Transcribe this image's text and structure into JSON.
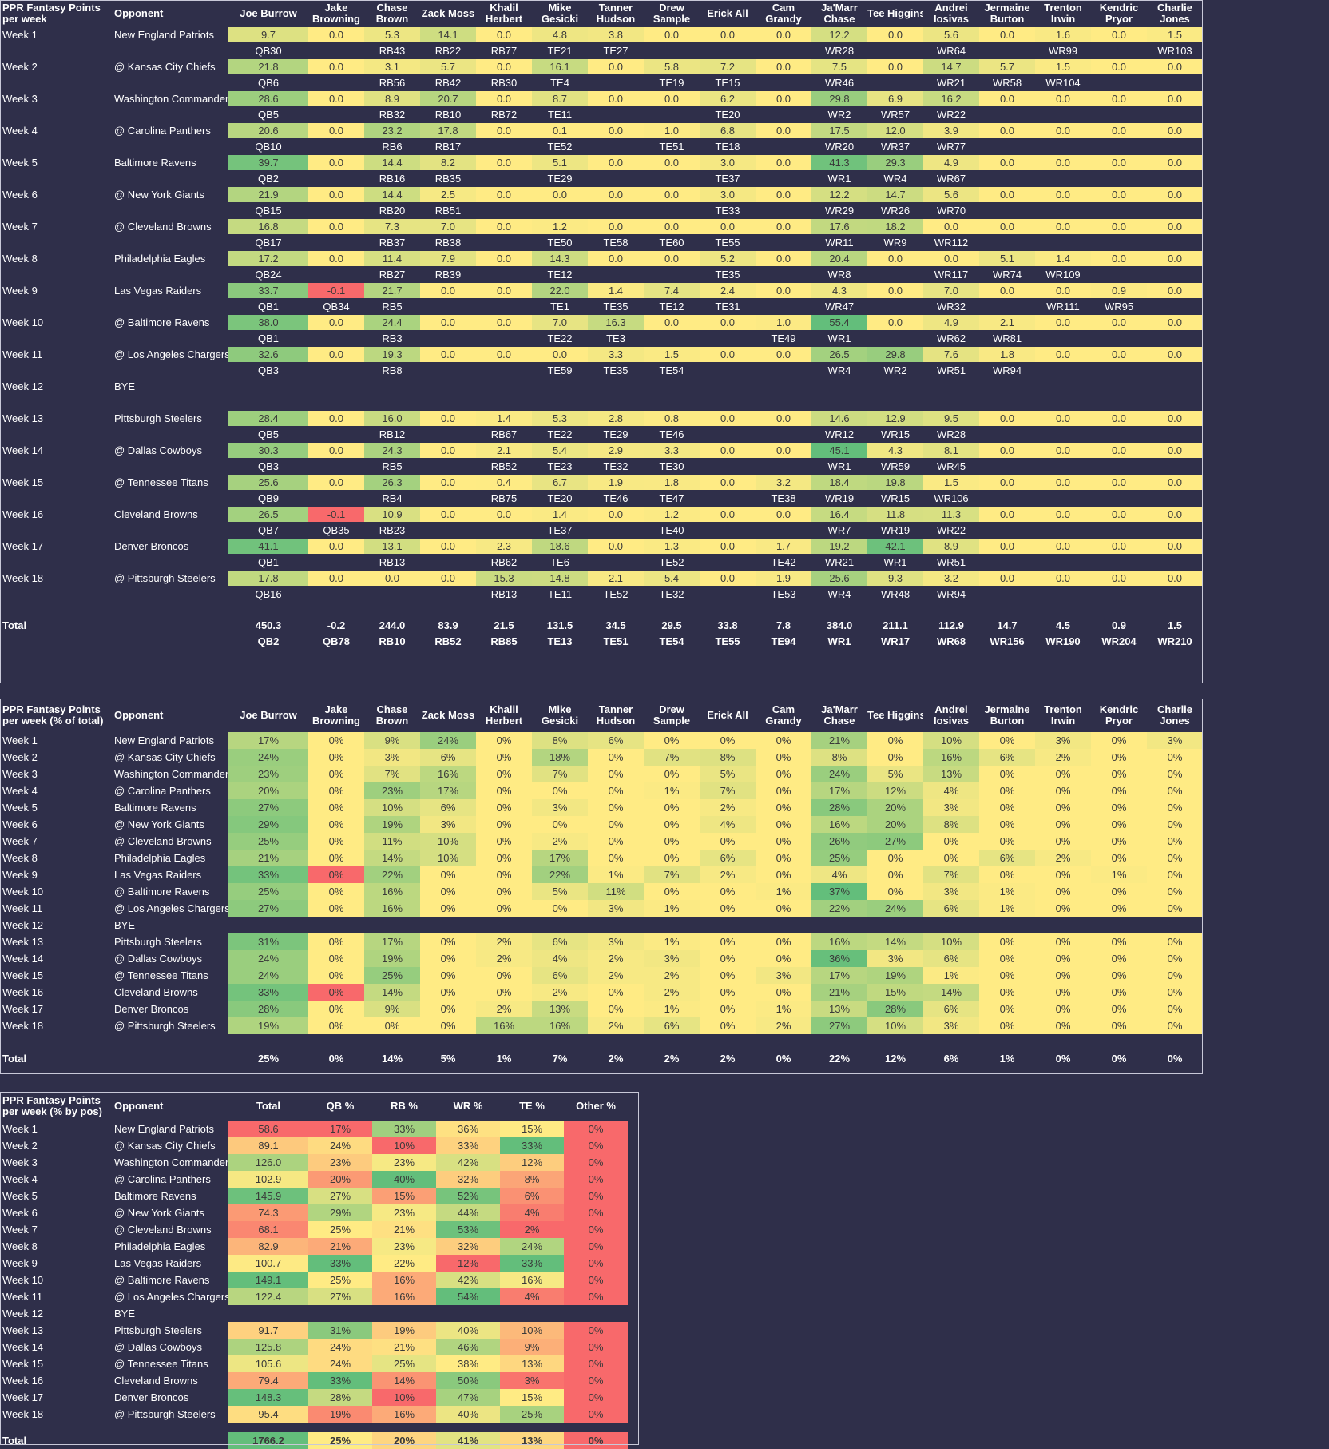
{
  "players": [
    "Joe Burrow",
    "Jake Browning",
    "Chase Brown",
    "Zack Moss",
    "Khalil Herbert",
    "Mike Gesicki",
    "Tanner Hudson",
    "Drew Sample",
    "Erick All",
    "Cam Grandy",
    "Ja'Marr Chase",
    "Tee Higgins",
    "Andrei Iosivas",
    "Jermaine Burton",
    "Trenton Irwin",
    "Kendric Pryor",
    "Charlie Jones"
  ],
  "players_display": [
    "Joe Burrow",
    "Jake\nBrowning",
    "Chase\nBrown",
    "Zack Moss",
    "Khalil\nHerbert",
    "Mike\nGesicki",
    "Tanner\nHudson",
    "Drew\nSample",
    "Erick All",
    "Cam\nGrandy",
    "Ja'Marr\nChase",
    "Tee Higgins",
    "Andrei\nIosivas",
    "Jermaine\nBurton",
    "Trenton\nIrwin",
    "Kendric\nPryor",
    "Charlie\nJones"
  ],
  "colors": {
    "background": "#2f2f4a",
    "low": "#f8696b",
    "mid": "#ffeb84",
    "high": "#63be7b",
    "text_on_cell": "#3a3a3a"
  },
  "weeks": [
    {
      "week": "Week 1",
      "opp": "New England Patriots"
    },
    {
      "week": "Week 2",
      "opp": "@ Kansas City Chiefs"
    },
    {
      "week": "Week 3",
      "opp": "Washington Commanders"
    },
    {
      "week": "Week 4",
      "opp": "@ Carolina Panthers"
    },
    {
      "week": "Week 5",
      "opp": "Baltimore Ravens"
    },
    {
      "week": "Week 6",
      "opp": "@ New York Giants"
    },
    {
      "week": "Week 7",
      "opp": "@ Cleveland Browns"
    },
    {
      "week": "Week 8",
      "opp": "Philadelphia Eagles"
    },
    {
      "week": "Week 9",
      "opp": "Las Vegas Raiders"
    },
    {
      "week": "Week 10",
      "opp": "@ Baltimore Ravens"
    },
    {
      "week": "Week 11",
      "opp": "@ Los Angeles Chargers"
    },
    {
      "week": "Week 12",
      "opp": "BYE"
    },
    {
      "week": "Week 13",
      "opp": "Pittsburgh Steelers"
    },
    {
      "week": "Week 14",
      "opp": "@ Dallas Cowboys"
    },
    {
      "week": "Week 15",
      "opp": "@ Tennessee Titans"
    },
    {
      "week": "Week 16",
      "opp": "Cleveland Browns"
    },
    {
      "week": "Week 17",
      "opp": "Denver Broncos"
    },
    {
      "week": "Week 18",
      "opp": "@ Pittsburgh Steelers"
    }
  ],
  "table1": {
    "title_line1": "PPR Fantasy Points",
    "title_line2": "per week",
    "opponent_header": "Opponent",
    "points": [
      [
        9.7,
        0.0,
        5.3,
        14.1,
        0.0,
        4.8,
        3.8,
        0.0,
        0.0,
        0.0,
        12.2,
        0.0,
        5.6,
        0.0,
        1.6,
        0.0,
        1.5
      ],
      [
        21.8,
        0.0,
        3.1,
        5.7,
        0.0,
        16.1,
        0.0,
        5.8,
        7.2,
        0.0,
        7.5,
        0.0,
        14.7,
        5.7,
        1.5,
        0.0,
        0.0
      ],
      [
        28.6,
        0.0,
        8.9,
        20.7,
        0.0,
        8.7,
        0.0,
        0.0,
        6.2,
        0.0,
        29.8,
        6.9,
        16.2,
        0.0,
        0.0,
        0.0,
        0.0
      ],
      [
        20.6,
        0.0,
        23.2,
        17.8,
        0.0,
        0.1,
        0.0,
        1.0,
        6.8,
        0.0,
        17.5,
        12.0,
        3.9,
        0.0,
        0.0,
        0.0,
        0.0
      ],
      [
        39.7,
        0.0,
        14.4,
        8.2,
        0.0,
        5.1,
        0.0,
        0.0,
        3.0,
        0.0,
        41.3,
        29.3,
        4.9,
        0.0,
        0.0,
        0.0,
        0.0
      ],
      [
        21.9,
        0.0,
        14.4,
        2.5,
        0.0,
        0.0,
        0.0,
        0.0,
        3.0,
        0.0,
        12.2,
        14.7,
        5.6,
        0.0,
        0.0,
        0.0,
        0.0
      ],
      [
        16.8,
        0.0,
        7.3,
        7.0,
        0.0,
        1.2,
        0.0,
        0.0,
        0.0,
        0.0,
        17.6,
        18.2,
        0.0,
        0.0,
        0.0,
        0.0,
        0.0
      ],
      [
        17.2,
        0.0,
        11.4,
        7.9,
        0.0,
        14.3,
        0.0,
        0.0,
        5.2,
        0.0,
        20.4,
        0.0,
        0.0,
        5.1,
        1.4,
        0.0,
        0.0
      ],
      [
        33.7,
        -0.1,
        21.7,
        0.0,
        0.0,
        22.0,
        1.4,
        7.4,
        2.4,
        0.0,
        4.3,
        0.0,
        7.0,
        0.0,
        0.0,
        0.9,
        0.0
      ],
      [
        38.0,
        0.0,
        24.4,
        0.0,
        0.0,
        7.0,
        16.3,
        0.0,
        0.0,
        1.0,
        55.4,
        0.0,
        4.9,
        2.1,
        0.0,
        0.0,
        0.0
      ],
      [
        32.6,
        0.0,
        19.3,
        0.0,
        0.0,
        0.0,
        3.3,
        1.5,
        0.0,
        0.0,
        26.5,
        29.8,
        7.6,
        1.8,
        0.0,
        0.0,
        0.0
      ],
      null,
      [
        28.4,
        0.0,
        16.0,
        0.0,
        1.4,
        5.3,
        2.8,
        0.8,
        0.0,
        0.0,
        14.6,
        12.9,
        9.5,
        0.0,
        0.0,
        0.0,
        0.0
      ],
      [
        30.3,
        0.0,
        24.3,
        0.0,
        2.1,
        5.4,
        2.9,
        3.3,
        0.0,
        0.0,
        45.1,
        4.3,
        8.1,
        0.0,
        0.0,
        0.0,
        0.0
      ],
      [
        25.6,
        0.0,
        26.3,
        0.0,
        0.4,
        6.7,
        1.9,
        1.8,
        0.0,
        3.2,
        18.4,
        19.8,
        1.5,
        0.0,
        0.0,
        0.0,
        0.0
      ],
      [
        26.5,
        -0.1,
        10.9,
        0.0,
        0.0,
        1.4,
        0.0,
        1.2,
        0.0,
        0.0,
        16.4,
        11.8,
        11.3,
        0.0,
        0.0,
        0.0,
        0.0
      ],
      [
        41.1,
        0.0,
        13.1,
        0.0,
        2.3,
        18.6,
        0.0,
        1.3,
        0.0,
        1.7,
        19.2,
        42.1,
        8.9,
        0.0,
        0.0,
        0.0,
        0.0
      ],
      [
        17.8,
        0.0,
        0.0,
        0.0,
        15.3,
        14.8,
        2.1,
        5.4,
        0.0,
        1.9,
        25.6,
        9.3,
        3.2,
        0.0,
        0.0,
        0.0,
        0.0
      ]
    ],
    "ranks": [
      [
        "QB30",
        "",
        "RB43",
        "RB22",
        "RB77",
        "TE21",
        "TE27",
        "",
        "",
        "",
        "WR28",
        "",
        "WR64",
        "",
        "WR99",
        "",
        "WR103"
      ],
      [
        "QB6",
        "",
        "RB56",
        "RB42",
        "RB30",
        "TE4",
        "",
        "TE19",
        "TE15",
        "",
        "WR46",
        "",
        "WR21",
        "WR58",
        "WR104",
        "",
        ""
      ],
      [
        "QB5",
        "",
        "RB32",
        "RB10",
        "RB72",
        "TE11",
        "",
        "",
        "TE20",
        "",
        "WR2",
        "WR57",
        "WR22",
        "",
        "",
        "",
        ""
      ],
      [
        "QB10",
        "",
        "RB6",
        "RB17",
        "",
        "TE52",
        "",
        "TE51",
        "TE18",
        "",
        "WR20",
        "WR37",
        "WR77",
        "",
        "",
        "",
        ""
      ],
      [
        "QB2",
        "",
        "RB16",
        "RB35",
        "",
        "TE29",
        "",
        "",
        "TE37",
        "",
        "WR1",
        "WR4",
        "WR67",
        "",
        "",
        "",
        ""
      ],
      [
        "QB15",
        "",
        "RB20",
        "RB51",
        "",
        "",
        "",
        "",
        "TE33",
        "",
        "WR29",
        "WR26",
        "WR70",
        "",
        "",
        "",
        ""
      ],
      [
        "QB17",
        "",
        "RB37",
        "RB38",
        "",
        "TE50",
        "TE58",
        "TE60",
        "TE55",
        "",
        "WR11",
        "WR9",
        "WR112",
        "",
        "",
        "",
        ""
      ],
      [
        "QB24",
        "",
        "RB27",
        "RB39",
        "",
        "TE12",
        "",
        "",
        "TE35",
        "",
        "WR8",
        "",
        "WR117",
        "WR74",
        "WR109",
        "",
        ""
      ],
      [
        "QB1",
        "QB34",
        "RB5",
        "",
        "",
        "TE1",
        "TE35",
        "TE12",
        "TE31",
        "",
        "WR47",
        "",
        "WR32",
        "",
        "WR111",
        "WR95",
        ""
      ],
      [
        "QB1",
        "",
        "RB3",
        "",
        "",
        "TE22",
        "TE3",
        "",
        "",
        "TE49",
        "WR1",
        "",
        "WR62",
        "WR81",
        "",
        "",
        ""
      ],
      [
        "QB3",
        "",
        "RB8",
        "",
        "",
        "TE59",
        "TE35",
        "TE54",
        "",
        "",
        "WR4",
        "WR2",
        "WR51",
        "WR94",
        "",
        "",
        ""
      ],
      null,
      [
        "QB5",
        "",
        "RB12",
        "",
        "RB67",
        "TE22",
        "TE29",
        "TE46",
        "",
        "",
        "WR12",
        "WR15",
        "WR28",
        "",
        "",
        "",
        ""
      ],
      [
        "QB3",
        "",
        "RB5",
        "",
        "RB52",
        "TE23",
        "TE32",
        "TE30",
        "",
        "",
        "WR1",
        "WR59",
        "WR45",
        "",
        "",
        "",
        ""
      ],
      [
        "QB9",
        "",
        "RB4",
        "",
        "RB75",
        "TE20",
        "TE46",
        "TE47",
        "",
        "TE38",
        "WR19",
        "WR15",
        "WR106",
        "",
        "",
        "",
        ""
      ],
      [
        "QB7",
        "QB35",
        "RB23",
        "",
        "",
        "TE37",
        "",
        "TE40",
        "",
        "",
        "WR7",
        "WR19",
        "WR22",
        "",
        "",
        "",
        ""
      ],
      [
        "QB1",
        "",
        "RB13",
        "",
        "RB62",
        "TE6",
        "",
        "TE52",
        "",
        "TE42",
        "WR21",
        "WR1",
        "WR51",
        "",
        "",
        "",
        ""
      ],
      [
        "QB16",
        "",
        "",
        "",
        "RB13",
        "TE11",
        "TE52",
        "TE32",
        "",
        "TE53",
        "WR4",
        "WR48",
        "WR94",
        "",
        "",
        "",
        ""
      ]
    ],
    "total_label": "Total",
    "totals": [
      "450.3",
      "-0.2",
      "244.0",
      "83.9",
      "21.5",
      "131.5",
      "34.5",
      "29.5",
      "33.8",
      "7.8",
      "384.0",
      "211.1",
      "112.9",
      "14.7",
      "4.5",
      "0.9",
      "1.5"
    ],
    "total_ranks": [
      "QB2",
      "QB78",
      "RB10",
      "RB52",
      "RB85",
      "TE13",
      "TE51",
      "TE54",
      "TE55",
      "TE94",
      "WR1",
      "WR17",
      "WR68",
      "WR156",
      "WR190",
      "WR204",
      "WR210"
    ]
  },
  "table2": {
    "title_line1": "PPR Fantasy Points",
    "title_line2": "per week (% of total)",
    "opponent_header": "Opponent",
    "pct": [
      [
        17,
        0,
        9,
        24,
        0,
        8,
        6,
        0,
        0,
        0,
        21,
        0,
        10,
        0,
        3,
        0,
        3
      ],
      [
        24,
        0,
        3,
        6,
        0,
        18,
        0,
        7,
        8,
        0,
        8,
        0,
        16,
        6,
        2,
        0,
        0
      ],
      [
        23,
        0,
        7,
        16,
        0,
        7,
        0,
        0,
        5,
        0,
        24,
        5,
        13,
        0,
        0,
        0,
        0
      ],
      [
        20,
        0,
        23,
        17,
        0,
        0,
        0,
        1,
        7,
        0,
        17,
        12,
        4,
        0,
        0,
        0,
        0
      ],
      [
        27,
        0,
        10,
        6,
        0,
        3,
        0,
        0,
        2,
        0,
        28,
        20,
        3,
        0,
        0,
        0,
        0
      ],
      [
        29,
        0,
        19,
        3,
        0,
        0,
        0,
        0,
        4,
        0,
        16,
        20,
        8,
        0,
        0,
        0,
        0
      ],
      [
        25,
        0,
        11,
        10,
        0,
        2,
        0,
        0,
        0,
        0,
        26,
        27,
        0,
        0,
        0,
        0,
        0
      ],
      [
        21,
        0,
        14,
        10,
        0,
        17,
        0,
        0,
        6,
        0,
        25,
        0,
        0,
        6,
        2,
        0,
        0
      ],
      [
        33,
        0,
        22,
        0,
        0,
        22,
        1,
        7,
        2,
        0,
        4,
        0,
        7,
        0,
        0,
        1,
        0
      ],
      [
        25,
        0,
        16,
        0,
        0,
        5,
        11,
        0,
        0,
        1,
        37,
        0,
        3,
        1,
        0,
        0,
        0
      ],
      [
        27,
        0,
        16,
        0,
        0,
        0,
        3,
        1,
        0,
        0,
        22,
        24,
        6,
        1,
        0,
        0,
        0
      ],
      null,
      [
        31,
        0,
        17,
        0,
        2,
        6,
        3,
        1,
        0,
        0,
        16,
        14,
        10,
        0,
        0,
        0,
        0
      ],
      [
        24,
        0,
        19,
        0,
        2,
        4,
        2,
        3,
        0,
        0,
        36,
        3,
        6,
        0,
        0,
        0,
        0
      ],
      [
        24,
        0,
        25,
        0,
        0,
        6,
        2,
        2,
        0,
        3,
        17,
        19,
        1,
        0,
        0,
        0,
        0
      ],
      [
        33,
        0,
        14,
        0,
        0,
        2,
        0,
        2,
        0,
        0,
        21,
        15,
        14,
        0,
        0,
        0,
        0
      ],
      [
        28,
        0,
        9,
        0,
        2,
        13,
        0,
        1,
        0,
        1,
        13,
        28,
        6,
        0,
        0,
        0,
        0
      ],
      [
        19,
        0,
        0,
        0,
        16,
        16,
        2,
        6,
        0,
        2,
        27,
        10,
        3,
        0,
        0,
        0,
        0
      ]
    ],
    "neg_cells": [
      [
        8,
        1
      ],
      [
        15,
        1
      ]
    ],
    "total_label": "Total",
    "totals": [
      "25%",
      "0%",
      "14%",
      "5%",
      "1%",
      "7%",
      "2%",
      "2%",
      "2%",
      "0%",
      "22%",
      "12%",
      "6%",
      "1%",
      "0%",
      "0%",
      "0%"
    ]
  },
  "table3": {
    "title_line1": "PPR Fantasy Points",
    "title_line2": "per week (% by pos)",
    "opponent_header": "Opponent",
    "headers": [
      "Total",
      "QB %",
      "RB %",
      "WR %",
      "TE %",
      "Other %"
    ],
    "rows": [
      [
        58.6,
        17,
        33,
        36,
        15,
        0
      ],
      [
        89.1,
        24,
        10,
        33,
        33,
        0
      ],
      [
        126.0,
        23,
        23,
        42,
        12,
        0
      ],
      [
        102.9,
        20,
        40,
        32,
        8,
        0
      ],
      [
        145.9,
        27,
        15,
        52,
        6,
        0
      ],
      [
        74.3,
        29,
        23,
        44,
        4,
        0
      ],
      [
        68.1,
        25,
        21,
        53,
        2,
        0
      ],
      [
        82.9,
        21,
        23,
        32,
        24,
        0
      ],
      [
        100.7,
        33,
        22,
        12,
        33,
        0
      ],
      [
        149.1,
        25,
        16,
        42,
        16,
        0
      ],
      [
        122.4,
        27,
        16,
        54,
        4,
        0
      ],
      null,
      [
        91.7,
        31,
        19,
        40,
        10,
        0
      ],
      [
        125.8,
        24,
        21,
        46,
        9,
        0
      ],
      [
        105.6,
        24,
        25,
        38,
        13,
        0
      ],
      [
        79.4,
        33,
        14,
        50,
        3,
        0
      ],
      [
        148.3,
        28,
        10,
        47,
        15,
        0
      ],
      [
        95.4,
        19,
        16,
        40,
        25,
        0
      ]
    ],
    "total_label": "Total",
    "totals": [
      "1766.2",
      "25%",
      "20%",
      "41%",
      "13%",
      "0%"
    ]
  }
}
